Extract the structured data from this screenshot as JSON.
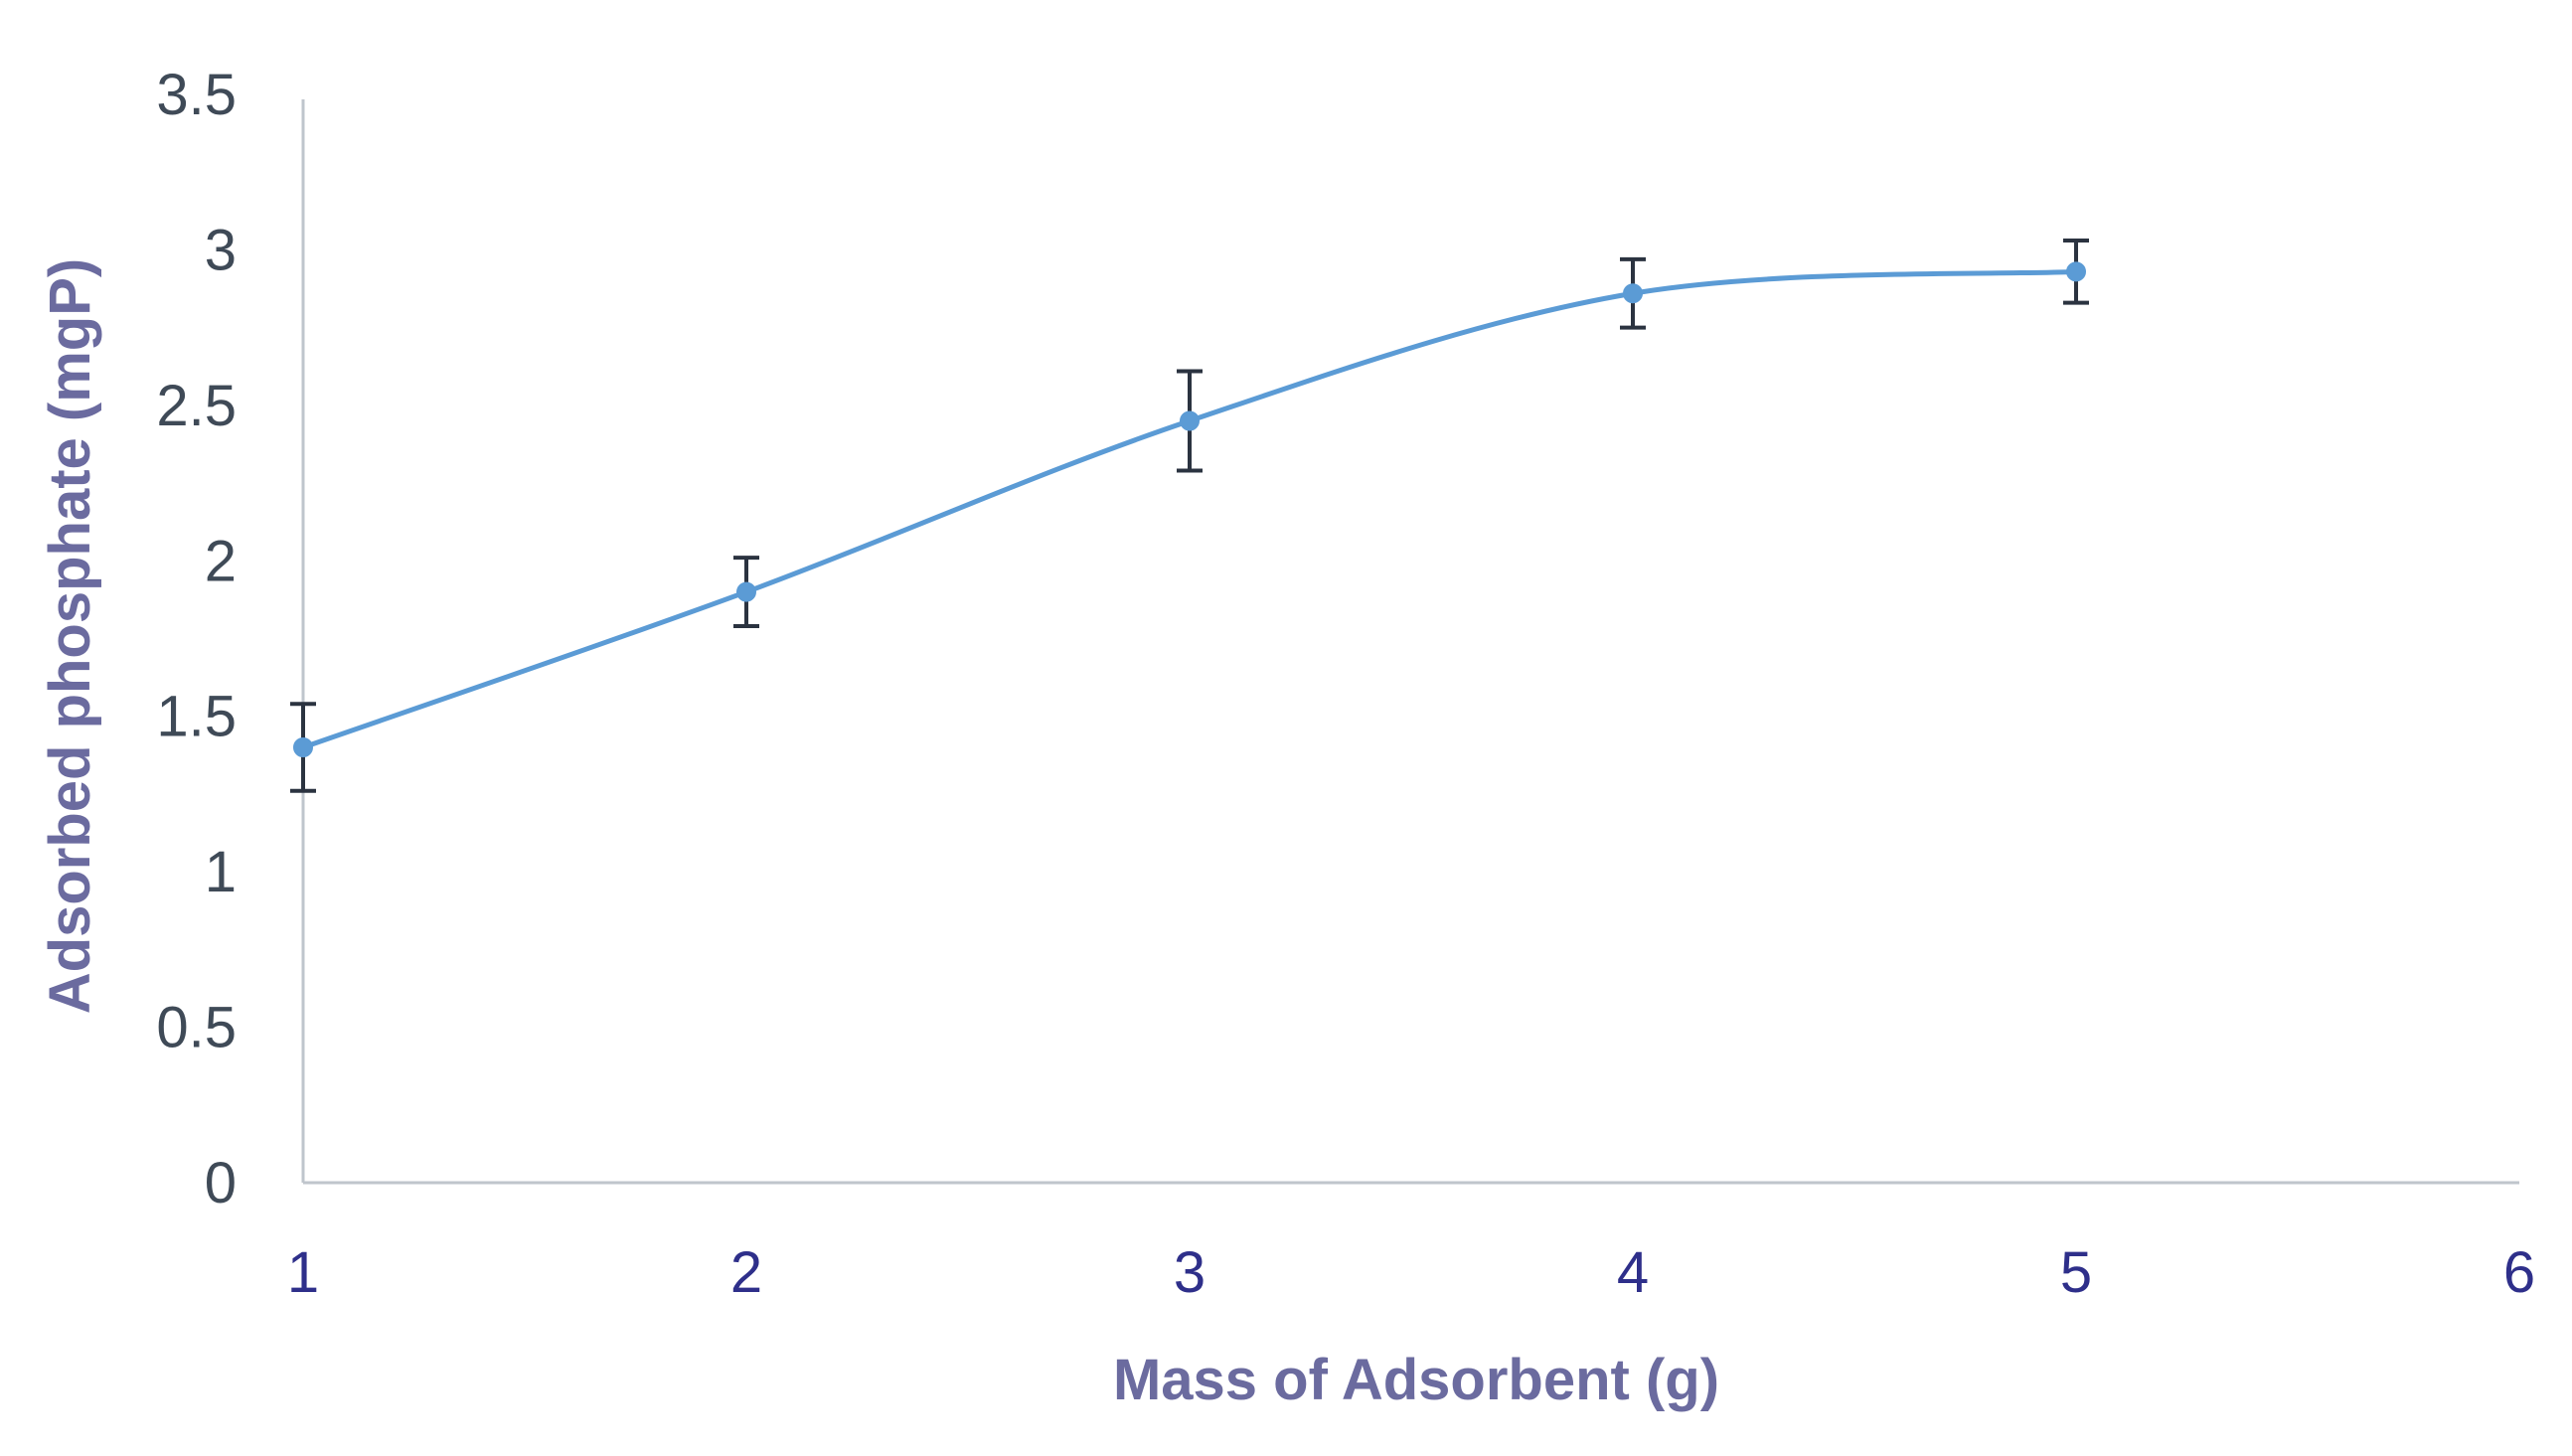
{
  "chart_data": {
    "type": "line",
    "title": "",
    "xlabel": "Mass of Adsorbent (g)",
    "ylabel": "Adsorbed phosphate (mgP)",
    "xlim": [
      1,
      6
    ],
    "ylim": [
      0,
      3.5
    ],
    "x_ticks": [
      "1",
      "2",
      "3",
      "4",
      "5",
      "6"
    ],
    "y_ticks": [
      "0",
      "0.5",
      "1",
      "1.5",
      "2",
      "2.5",
      "3",
      "3.5"
    ],
    "grid": false,
    "legend": "none",
    "smoothed": true,
    "series": [
      {
        "name": "Adsorbed phosphate",
        "x": [
          1,
          2,
          3,
          4,
          5
        ],
        "values": [
          1.4,
          1.9,
          2.45,
          2.86,
          2.93
        ],
        "error_low": [
          0.14,
          0.11,
          0.16,
          0.11,
          0.1
        ],
        "error_high": [
          0.14,
          0.11,
          0.16,
          0.11,
          0.1
        ]
      }
    ],
    "colors": {
      "series": "#5b9bd5",
      "error_bars": "#2b3340",
      "axis": "#bfc5cc",
      "y_tick_text": "#3f4a57",
      "x_tick_text": "#2e2f8a",
      "axis_title": "#6b6b9f"
    }
  }
}
